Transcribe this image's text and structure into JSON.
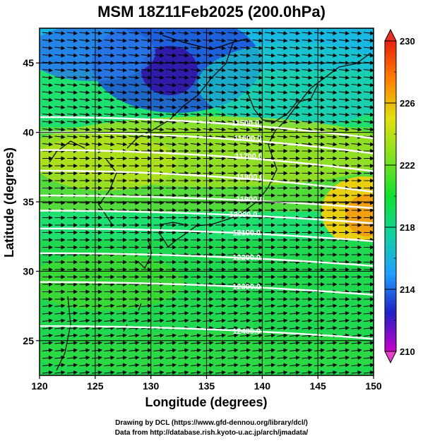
{
  "title": "MSM 18Z11Feb2025 (200.0hPa)",
  "credits": {
    "line1": "Drawing by DCL (https://www.gfd-dennou.org/library/dcl/)",
    "line2": "Data from http://database.rish.kyoto-u.ac.jp/arch/jmadata/"
  },
  "chart_data": {
    "type": "heatmap",
    "title": "MSM 18Z11Feb2025 (200.0hPa)",
    "xlabel": "Longitude (degrees)",
    "ylabel": "Latitude  (degrees)",
    "xlim": [
      120,
      150
    ],
    "ylim": [
      22.5,
      47.5
    ],
    "xticks": [
      120,
      125,
      130,
      135,
      140,
      145,
      150
    ],
    "yticks": [
      25,
      30,
      35,
      40,
      45
    ],
    "grid": true,
    "colorbar": {
      "min": 210,
      "max": 230,
      "ticks": [
        210,
        214,
        218,
        222,
        226,
        230
      ],
      "colors": [
        "#c800c8",
        "#2020c8",
        "#20a0ff",
        "#10d0a0",
        "#10e030",
        "#80e020",
        "#e0e010",
        "#ff8000",
        "#e82010"
      ]
    },
    "height_contours": [
      {
        "value": 11500,
        "label": "11500.0",
        "label_lon": 138.5,
        "label_lat": 40.7
      },
      {
        "value": 11600,
        "label": "11600.0",
        "label_lon": 138.7,
        "label_lat": 39.6
      },
      {
        "value": 11700,
        "label": "11700.0",
        "label_lon": 138.8,
        "label_lat": 38.3
      },
      {
        "value": 11800,
        "label": "11800.0",
        "label_lon": 138.9,
        "label_lat": 36.8
      },
      {
        "value": 11900,
        "label": "11900.0",
        "label_lon": 138.9,
        "label_lat": 35.2
      },
      {
        "value": 12000,
        "label": "12000.0",
        "label_lon": 138.3,
        "label_lat": 34.1
      },
      {
        "value": 12100,
        "label": "12100.0",
        "label_lon": 138.6,
        "label_lat": 32.8
      },
      {
        "value": 12200,
        "label": "12200.0",
        "label_lon": 138.6,
        "label_lat": 31.0
      },
      {
        "value": 12300,
        "label": "12300.0",
        "label_lon": 138.6,
        "label_lat": 28.9
      },
      {
        "value": 12400,
        "label": "12400.0",
        "label_lon": 138.6,
        "label_lat": 25.7
      }
    ],
    "wind_vectors": "uniform westerly flow across domain"
  }
}
